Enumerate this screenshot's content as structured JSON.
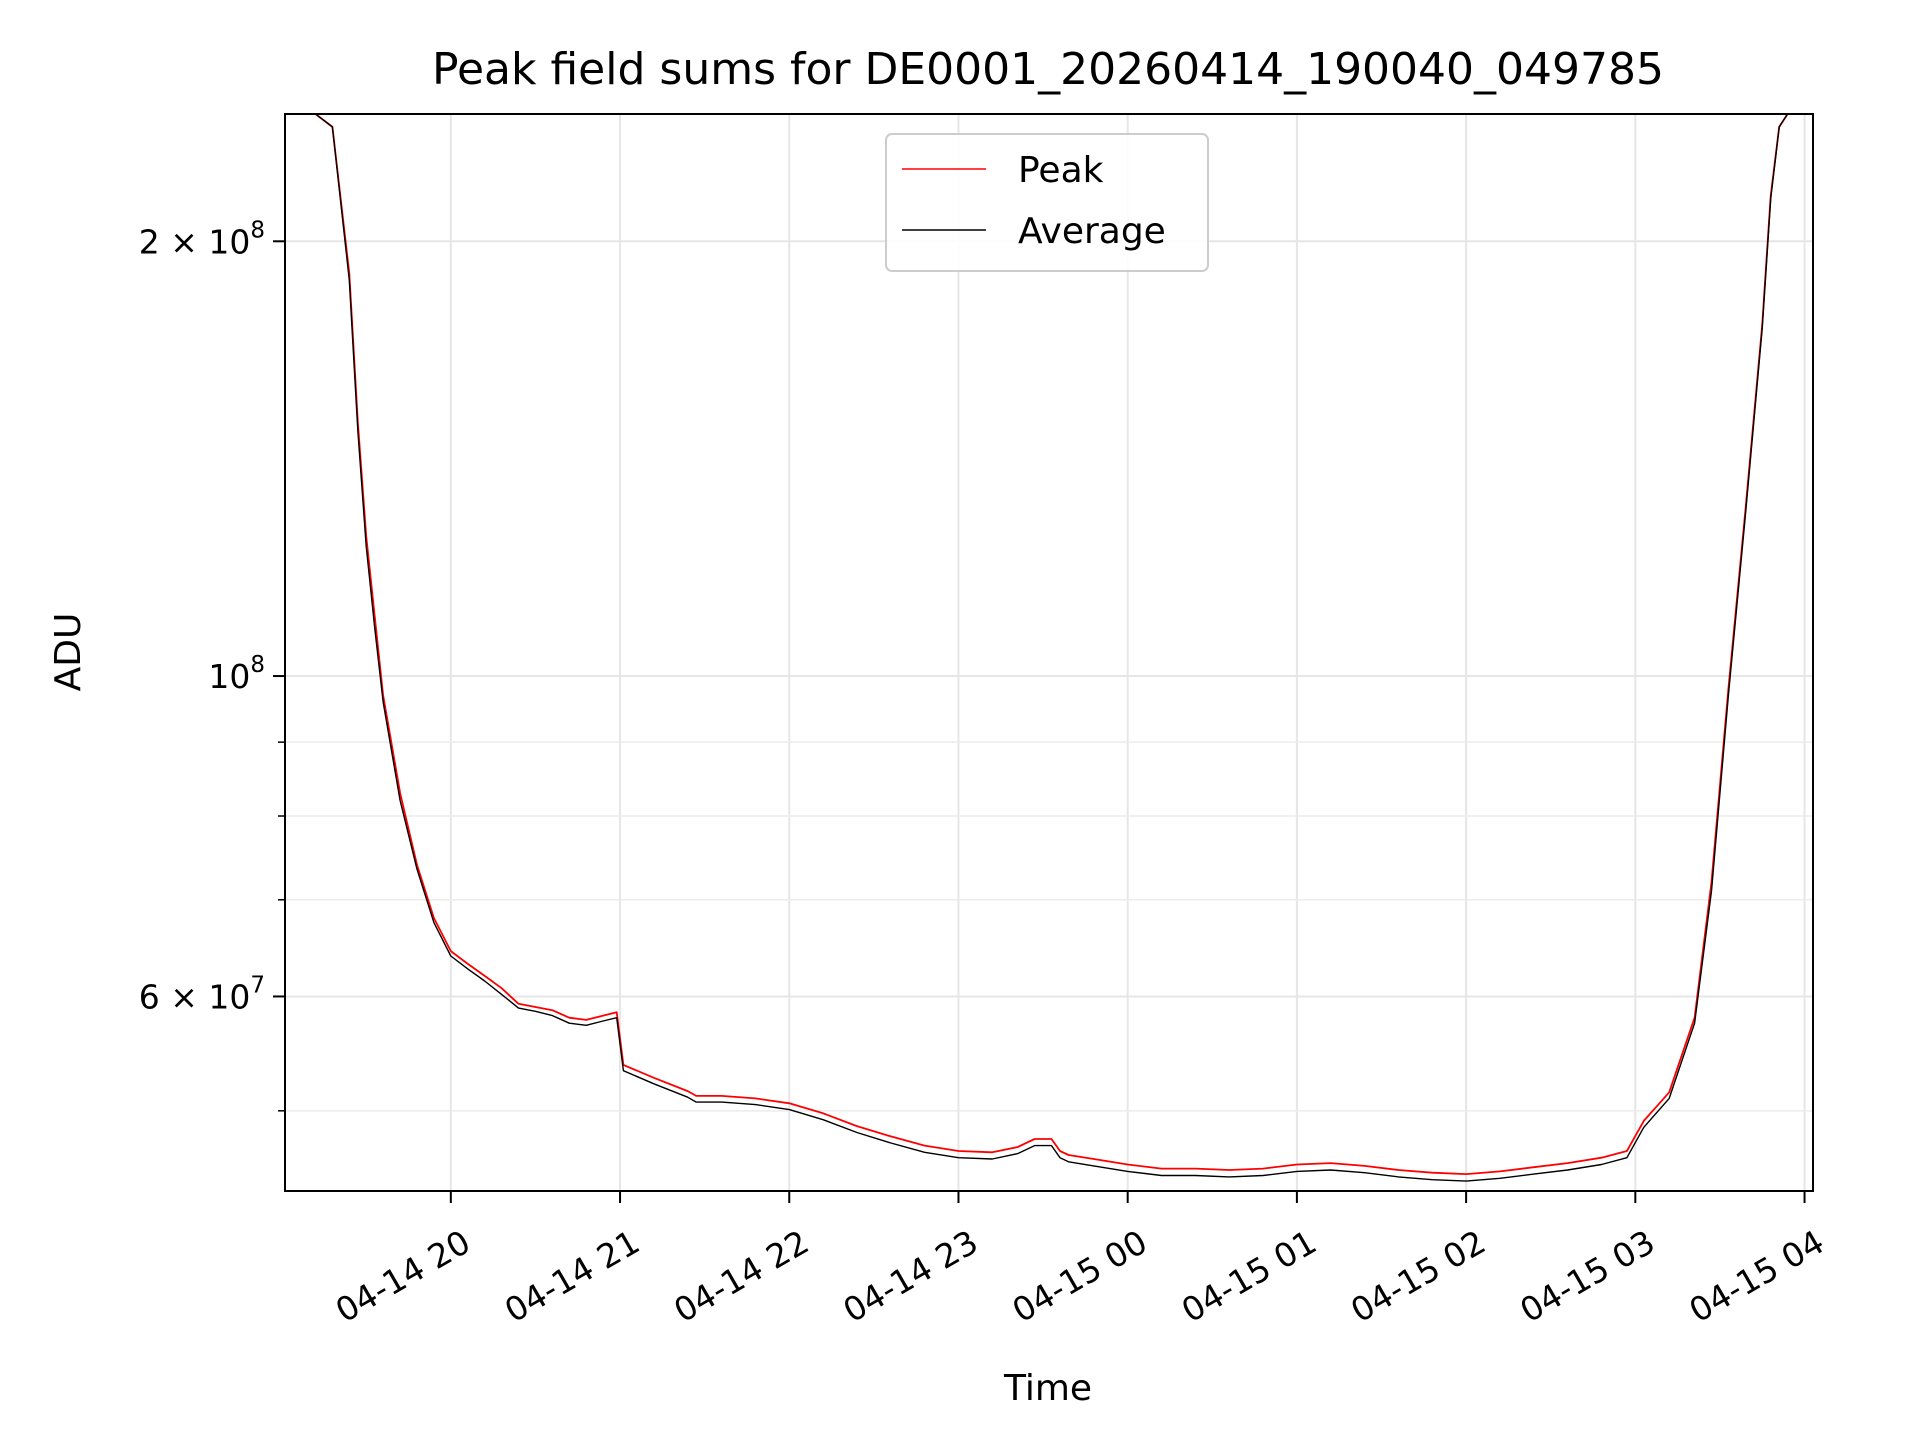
{
  "chart_data": {
    "type": "line",
    "title": "Peak field sums for DE0001_20260414_190040_049785",
    "xlabel": "Time",
    "ylabel": "ADU",
    "yscale": "log",
    "ylim": [
      44000000,
      245000000
    ],
    "xlim_hours": [
      19.02,
      28.05
    ],
    "grid": true,
    "legend_position": "upper center",
    "x_tick_labels": [
      "04-14 20",
      "04-14 21",
      "04-14 22",
      "04-14 23",
      "04-15 00",
      "04-15 01",
      "04-15 02",
      "04-15 03",
      "04-15 04"
    ],
    "x_tick_hours": [
      20,
      21,
      22,
      23,
      24,
      25,
      26,
      27,
      28
    ],
    "y_major_ticks": [
      {
        "value": 100000000,
        "base": "10",
        "exp": "8",
        "coef": ""
      },
      {
        "value": 200000000,
        "base": "10",
        "exp": "8",
        "coef": "2 × "
      },
      {
        "value": 60000000,
        "base": "10",
        "exp": "7",
        "coef": "6 × "
      }
    ],
    "y_minor_tick_values": [
      50000000,
      70000000,
      80000000,
      90000000
    ],
    "series": [
      {
        "name": "Peak",
        "color": "#ff0000",
        "x_hours": [
          19.2,
          19.3,
          19.4,
          19.45,
          19.5,
          19.55,
          19.6,
          19.7,
          19.8,
          19.9,
          20.0,
          20.1,
          20.2,
          20.3,
          20.4,
          20.5,
          20.6,
          20.7,
          20.8,
          20.9,
          20.98,
          21.02,
          21.2,
          21.4,
          21.45,
          21.6,
          21.8,
          22.0,
          22.2,
          22.4,
          22.6,
          22.8,
          23.0,
          23.2,
          23.35,
          23.45,
          23.55,
          23.6,
          23.65,
          23.8,
          24.0,
          24.2,
          24.4,
          24.6,
          24.8,
          25.0,
          25.2,
          25.4,
          25.6,
          25.8,
          26.0,
          26.2,
          26.4,
          26.6,
          26.8,
          26.95,
          27.05,
          27.2,
          27.35,
          27.45,
          27.55,
          27.65,
          27.75,
          27.8,
          27.85,
          27.9,
          28.0
        ],
        "y": [
          245000000,
          240000000,
          190000000,
          150000000,
          125000000,
          110000000,
          97000000,
          83000000,
          74000000,
          68000000,
          64500000,
          63200000,
          62000000,
          60800000,
          59300000,
          59000000,
          58700000,
          58000000,
          57800000,
          58200000,
          58500000,
          53800000,
          52700000,
          51600000,
          51200000,
          51200000,
          51000000,
          50600000,
          49800000,
          48800000,
          48000000,
          47300000,
          46900000,
          46800000,
          47200000,
          47800000,
          47800000,
          46900000,
          46600000,
          46300000,
          45900000,
          45600000,
          45600000,
          45500000,
          45600000,
          45900000,
          46000000,
          45800000,
          45500000,
          45300000,
          45200000,
          45400000,
          45700000,
          46000000,
          46400000,
          46900000,
          49200000,
          51500000,
          58000000,
          72000000,
          98000000,
          130000000,
          175000000,
          215000000,
          240000000,
          245000000,
          245000000
        ]
      },
      {
        "name": "Average",
        "color": "#000000",
        "x_hours": [
          19.2,
          19.3,
          19.4,
          19.45,
          19.5,
          19.55,
          19.6,
          19.7,
          19.8,
          19.9,
          20.0,
          20.1,
          20.2,
          20.3,
          20.4,
          20.5,
          20.6,
          20.7,
          20.8,
          20.9,
          20.98,
          21.02,
          21.2,
          21.4,
          21.45,
          21.6,
          21.8,
          22.0,
          22.2,
          22.4,
          22.6,
          22.8,
          23.0,
          23.2,
          23.35,
          23.45,
          23.55,
          23.6,
          23.65,
          23.8,
          24.0,
          24.2,
          24.4,
          24.6,
          24.8,
          25.0,
          25.2,
          25.4,
          25.6,
          25.8,
          26.0,
          26.2,
          26.4,
          26.6,
          26.8,
          26.95,
          27.05,
          27.2,
          27.35,
          27.45,
          27.55,
          27.65,
          27.75,
          27.8,
          27.85,
          27.9,
          28.0
        ],
        "y": [
          245000000,
          240000000,
          188000000,
          148000000,
          123000000,
          108000000,
          96000000,
          82000000,
          73500000,
          67500000,
          64000000,
          62700000,
          61500000,
          60200000,
          58900000,
          58600000,
          58200000,
          57500000,
          57300000,
          57700000,
          58000000,
          53300000,
          52200000,
          51100000,
          50700000,
          50700000,
          50500000,
          50100000,
          49300000,
          48300000,
          47500000,
          46800000,
          46400000,
          46300000,
          46700000,
          47300000,
          47300000,
          46400000,
          46100000,
          45800000,
          45400000,
          45100000,
          45100000,
          45000000,
          45100000,
          45400000,
          45500000,
          45300000,
          45000000,
          44800000,
          44700000,
          44900000,
          45200000,
          45500000,
          45900000,
          46400000,
          48700000,
          51000000,
          57500000,
          71000000,
          97000000,
          129000000,
          174000000,
          214000000,
          240000000,
          245000000,
          245000000
        ]
      }
    ]
  }
}
